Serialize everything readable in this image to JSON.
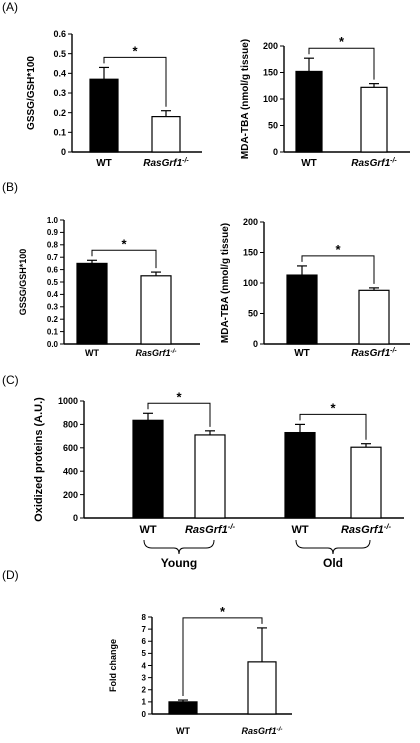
{
  "panel_labels": [
    "(A)",
    "(B)",
    "(C)",
    "(D)"
  ],
  "colors": {
    "wt_fill": "#000000",
    "ko_fill": "#ffffff",
    "stroke": "#000000",
    "text": "#000000"
  },
  "chart_data": [
    {
      "panel": "(A)",
      "type": "bar",
      "categories": [
        "WT",
        "RasGrf1-/-"
      ],
      "values": [
        0.37,
        0.18
      ],
      "errors": [
        0.06,
        0.03
      ],
      "ylabel": "GSSG/GSH*100",
      "ylim": [
        0,
        0.6
      ],
      "yticks": [
        "0",
        "0.1",
        "0.2",
        "0.3",
        "0.4",
        "0.5",
        "0.6"
      ],
      "significance": "*"
    },
    {
      "panel": "(A)",
      "type": "bar",
      "categories": [
        "WT",
        "RasGrf1-/-"
      ],
      "values": [
        152,
        122
      ],
      "errors": [
        25,
        7
      ],
      "ylabel": "MDA-TBA (nmol/g tissue)",
      "ylim": [
        0,
        200
      ],
      "yticks": [
        "0",
        "50",
        "100",
        "150",
        "200"
      ],
      "significance": "*"
    },
    {
      "panel": "(B)",
      "type": "bar",
      "categories": [
        "WT",
        "RasGrf1-/-"
      ],
      "values": [
        0.65,
        0.55
      ],
      "errors": [
        0.025,
        0.03
      ],
      "ylabel": "GSSG/GSH*100",
      "ylim": [
        0,
        1.0
      ],
      "yticks": [
        "0.0",
        "0.1",
        "0.2",
        "0.3",
        "0.4",
        "0.5",
        "0.6",
        "0.7",
        "0.8",
        "0.9",
        "1.0"
      ],
      "significance": "*"
    },
    {
      "panel": "(B)",
      "type": "bar",
      "categories": [
        "WT",
        "RasGrf1-/-"
      ],
      "values": [
        113,
        88
      ],
      "errors": [
        15,
        4
      ],
      "ylabel": "MDA-TBA (nmol/g tissue)",
      "ylim": [
        0,
        200
      ],
      "yticks": [
        "0",
        "50",
        "100",
        "150",
        "200"
      ],
      "significance": "*"
    },
    {
      "panel": "(C)",
      "type": "bar",
      "categories": [
        "WT",
        "RasGrf1-/-",
        "WT",
        "RasGrf1-/-"
      ],
      "groups": [
        "Young",
        "Old"
      ],
      "values": [
        835,
        710,
        730,
        605
      ],
      "errors": [
        60,
        35,
        70,
        30
      ],
      "ylabel": "Oxidized proteins (A.U.)",
      "ylim": [
        0,
        1000
      ],
      "yticks": [
        "0",
        "200",
        "400",
        "600",
        "800",
        "1000"
      ],
      "significance": [
        "*",
        "*"
      ]
    },
    {
      "panel": "(D)",
      "type": "bar",
      "categories": [
        "WT",
        "RasGrf1-/-"
      ],
      "values": [
        1.0,
        4.3
      ],
      "errors": [
        0.15,
        2.8
      ],
      "ylabel": "Fold change",
      "ylim": [
        0,
        8
      ],
      "yticks": [
        "0",
        "1",
        "2",
        "3",
        "4",
        "5",
        "6",
        "7",
        "8"
      ],
      "significance": "*"
    }
  ]
}
